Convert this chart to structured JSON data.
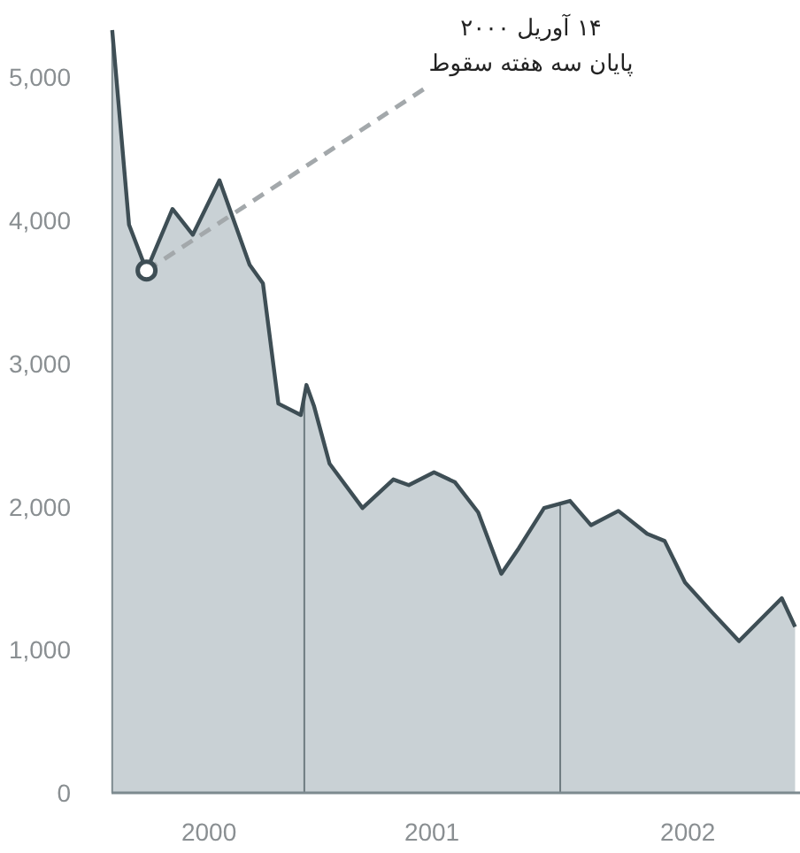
{
  "chart_data": {
    "type": "area",
    "x": [
      "2000-04-02",
      "2000-04-26",
      "2000-05-21",
      "2000-06-27",
      "2000-07-26",
      "2000-09-02",
      "2000-10-15",
      "2000-11-03",
      "2000-11-25",
      "2000-12-27",
      "2001-01-04",
      "2001-01-15",
      "2001-02-06",
      "2001-03-25",
      "2001-05-08",
      "2001-05-30",
      "2001-07-05",
      "2001-08-04",
      "2001-09-06",
      "2001-10-09",
      "2001-11-03",
      "2001-12-09",
      "2002-01-15",
      "2002-02-14",
      "2002-03-25",
      "2002-05-05",
      "2002-05-30",
      "2002-06-28",
      "2002-08-04",
      "2002-09-13",
      "2002-11-13",
      "2002-12-02"
    ],
    "series": [
      {
        "color": "#3e4e55",
        "values": [
          5330,
          3970,
          3650,
          4080,
          3900,
          4280,
          3690,
          3560,
          2720,
          2640,
          2850,
          2700,
          2300,
          1990,
          2190,
          2150,
          2240,
          2170,
          1960,
          1530,
          1710,
          1990,
          2040,
          1870,
          1970,
          1810,
          1760,
          1470,
          1270,
          1060,
          1360,
          1160
        ]
      }
    ],
    "xlim": [
      "2000-04-01",
      "2002-12-09"
    ],
    "xticks": [
      {
        "value": "2000-08-18",
        "label": "2000"
      },
      {
        "value": "2001-07-02",
        "label": "2001"
      },
      {
        "value": "2002-07-02",
        "label": "2002"
      }
    ],
    "ylim": [
      0,
      5330
    ],
    "yticks": [
      {
        "value": 0,
        "label": "0"
      },
      {
        "value": 1000,
        "label": "1,000"
      },
      {
        "value": 2000,
        "label": "2,000"
      },
      {
        "value": 3000,
        "label": "3,000"
      },
      {
        "value": 4000,
        "label": "4,000"
      },
      {
        "value": 5000,
        "label": "5,000"
      }
    ],
    "ref_lines": [
      {
        "axis": "x",
        "value": "2001-01-01",
        "color": "#6e7b80"
      },
      {
        "axis": "x",
        "value": "2002-01-01",
        "color": "#6e7b80"
      }
    ],
    "annotations": [
      {
        "text": "۱۴ آوریل ۲۰۰۰\nپایان سه هفته سقوط",
        "x": "2000-05-21",
        "y": 3650
      }
    ],
    "grid": false
  }
}
